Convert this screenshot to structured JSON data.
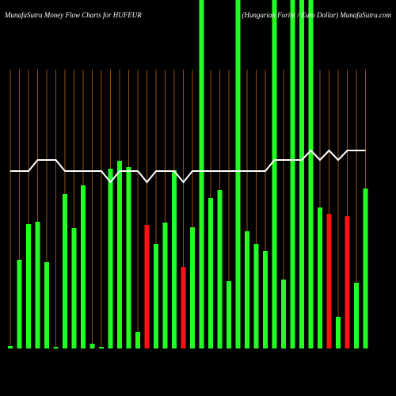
{
  "chart_data": {
    "type": "bar",
    "title": "MunafaSutra  Money Flow  Charts for HUFEUR",
    "subtitle": "(Hungarian Forint / Euro  Dollar)  MunafaSutra.com",
    "categories": [
      null,
      null,
      null,
      null,
      null,
      null,
      null,
      null,
      null,
      null,
      null,
      null,
      null,
      null,
      null,
      null,
      null,
      null,
      null,
      null,
      null,
      null,
      null,
      null,
      null,
      null,
      null,
      null,
      null,
      null,
      null,
      null,
      null,
      null,
      null,
      null,
      null,
      null,
      null,
      null
    ],
    "ylim": [
      0,
      440
    ],
    "grid": true,
    "grid_color": "#b5651d",
    "series": [
      {
        "name": null,
        "values": [
          3,
          112,
          157,
          160,
          109,
          2,
          195,
          152,
          206,
          6,
          2,
          227,
          237,
          229,
          21,
          156,
          132,
          159,
          225,
          103,
          153,
          440,
          190,
          200,
          85,
          440,
          148,
          132,
          123,
          440,
          87,
          440,
          440,
          440,
          178,
          170,
          40,
          167,
          83,
          202
        ],
        "colors": [
          "#22ff22",
          "#22ff22",
          "#22ff22",
          "#22ff22",
          "#22ff22",
          "#22ff22",
          "#22ff22",
          "#22ff22",
          "#22ff22",
          "#22ff22",
          "#22ff22",
          "#22ff22",
          "#22ff22",
          "#22ff22",
          "#22ff22",
          "#ff1111",
          "#22ff22",
          "#22ff22",
          "#22ff22",
          "#ff1111",
          "#22ff22",
          "#22ff22",
          "#22ff22",
          "#22ff22",
          "#22ff22",
          "#22ff22",
          "#22ff22",
          "#22ff22",
          "#22ff22",
          "#22ff22",
          "#22ff22",
          "#22ff22",
          "#22ff22",
          "#22ff22",
          "#22ff22",
          "#ff1111",
          "#22ff22",
          "#ff1111",
          "#22ff22",
          "#22ff22"
        ]
      },
      {
        "name": null,
        "type": "line",
        "color": "#ffffff",
        "values": [
          224,
          224,
          224,
          238,
          238,
          238,
          224,
          224,
          224,
          224,
          224,
          210,
          224,
          224,
          224,
          210,
          224,
          224,
          224,
          210,
          224,
          224,
          224,
          224,
          224,
          224,
          224,
          224,
          224,
          238,
          238,
          238,
          238,
          250,
          238,
          250,
          238,
          250,
          250,
          250
        ]
      }
    ]
  }
}
